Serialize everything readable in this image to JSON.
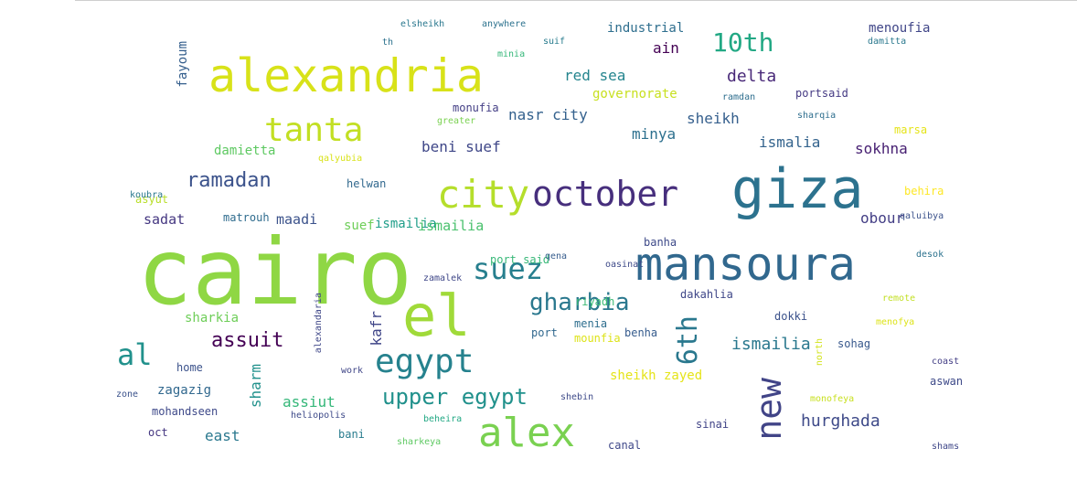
{
  "chart_data": {
    "type": "wordcloud",
    "words": [
      {
        "text": "cairo",
        "color": "#8fd744"
      },
      {
        "text": "giza",
        "color": "#2c728e"
      },
      {
        "text": "mansoura",
        "color": "#31688e"
      },
      {
        "text": "alexandria",
        "color": "#d8e219"
      },
      {
        "text": "el",
        "color": "#a0da39"
      },
      {
        "text": "city",
        "color": "#b5de2b"
      },
      {
        "text": "october",
        "color": "#472f7d"
      },
      {
        "text": "alex",
        "color": "#7ad151"
      },
      {
        "text": "tanta",
        "color": "#c2df23"
      },
      {
        "text": "egypt",
        "color": "#26828e"
      },
      {
        "text": "suez",
        "color": "#277f8e"
      },
      {
        "text": "al",
        "color": "#21918c"
      },
      {
        "text": "gharbia",
        "color": "#2a788e"
      },
      {
        "text": "upper egypt",
        "color": "#21918c"
      },
      {
        "text": "new",
        "color": "#414487"
      },
      {
        "text": "assuit",
        "color": "#440154"
      },
      {
        "text": "ramadan",
        "color": "#3b528b"
      },
      {
        "text": "10th",
        "color": "#22a884"
      },
      {
        "text": "6th",
        "color": "#2a788e"
      },
      {
        "text": "hurghada",
        "color": "#3e4a89"
      },
      {
        "text": "delta",
        "color": "#482878"
      },
      {
        "text": "ismailia",
        "color": "#2a788e"
      },
      {
        "text": "ismailia",
        "color": "#1f9e89"
      },
      {
        "text": "nasr city",
        "color": "#34618d"
      },
      {
        "text": "red sea",
        "color": "#25858e"
      },
      {
        "text": "sheikh",
        "color": "#355f8d"
      },
      {
        "text": "beni suef",
        "color": "#3f4788"
      },
      {
        "text": "minya",
        "color": "#2d708e"
      },
      {
        "text": "sokhna",
        "color": "#482173"
      },
      {
        "text": "ismalia",
        "color": "#33638d"
      },
      {
        "text": "suef",
        "color": "#6ece58"
      },
      {
        "text": "ismailia",
        "color": "#4ac16d"
      },
      {
        "text": "sadat",
        "color": "#453781"
      },
      {
        "text": "maadi",
        "color": "#3b528b"
      },
      {
        "text": "obour",
        "color": "#433e85"
      },
      {
        "text": "governorate",
        "color": "#c8e020"
      },
      {
        "text": "industrial",
        "color": "#2e6e8e"
      },
      {
        "text": "ain",
        "color": "#440154"
      },
      {
        "text": "menoufia",
        "color": "#404688"
      },
      {
        "text": "damietta",
        "color": "#5ec962"
      },
      {
        "text": "fayoum",
        "color": "#355f8d"
      },
      {
        "text": "sheikh zayed",
        "color": "#e5e419"
      },
      {
        "text": "assiut",
        "color": "#35b779"
      },
      {
        "text": "sharm",
        "color": "#21918c"
      },
      {
        "text": "zagazig",
        "color": "#31688e"
      },
      {
        "text": "sharkia",
        "color": "#6ece58"
      },
      {
        "text": "kafr",
        "color": "#404688"
      },
      {
        "text": "east",
        "color": "#2a788e"
      },
      {
        "text": "home",
        "color": "#3b528b"
      },
      {
        "text": "mohandseen",
        "color": "#3e4989"
      },
      {
        "text": "oct",
        "color": "#453781"
      },
      {
        "text": "canal",
        "color": "#3f4889"
      },
      {
        "text": "sinai",
        "color": "#414487"
      },
      {
        "text": "sohag",
        "color": "#38588c"
      },
      {
        "text": "dokki",
        "color": "#3b528b"
      },
      {
        "text": "dakahlia",
        "color": "#3f4788"
      },
      {
        "text": "port said",
        "color": "#37b878"
      },
      {
        "text": "portsaid",
        "color": "#443983"
      },
      {
        "text": "monufia",
        "color": "#433e85"
      },
      {
        "text": "helwan",
        "color": "#31688e"
      },
      {
        "text": "matrouh",
        "color": "#2f6c8e"
      },
      {
        "text": "asyut",
        "color": "#b8de29"
      },
      {
        "text": "koubra",
        "color": "#2a788e"
      },
      {
        "text": "riyadh",
        "color": "#3cbb75"
      },
      {
        "text": "banha",
        "color": "#3e4a89"
      },
      {
        "text": "benha",
        "color": "#365c8d"
      },
      {
        "text": "port",
        "color": "#31688e"
      },
      {
        "text": "menia",
        "color": "#2e6e8e"
      },
      {
        "text": "mounfia",
        "color": "#dde318"
      },
      {
        "text": "bani",
        "color": "#287c8e"
      },
      {
        "text": "sharkeya",
        "color": "#5ec962"
      },
      {
        "text": "beheira",
        "color": "#22a884"
      },
      {
        "text": "heliopolis",
        "color": "#3e4a89"
      },
      {
        "text": "alexandaria",
        "color": "#3f4788"
      },
      {
        "text": "anywhere",
        "color": "#2c728e"
      },
      {
        "text": "elsheikh",
        "color": "#2a788e"
      },
      {
        "text": "marsa",
        "color": "#e5e419"
      },
      {
        "text": "behira",
        "color": "#fde725"
      },
      {
        "text": "qaluibya",
        "color": "#3b528b"
      },
      {
        "text": "sharqia",
        "color": "#2e6e8e"
      },
      {
        "text": "damitta",
        "color": "#2a788e"
      },
      {
        "text": "aswan",
        "color": "#3e4a89"
      },
      {
        "text": "coast",
        "color": "#433e85"
      },
      {
        "text": "shams",
        "color": "#3f4788"
      },
      {
        "text": "north",
        "color": "#d2e21b"
      },
      {
        "text": "remote",
        "color": "#c2df23"
      },
      {
        "text": "menofya",
        "color": "#dde318"
      },
      {
        "text": "monofeya",
        "color": "#c8e020"
      },
      {
        "text": "greater",
        "color": "#7ad151"
      },
      {
        "text": "minia",
        "color": "#35b779"
      },
      {
        "text": "qena",
        "color": "#365c8d"
      },
      {
        "text": "oasinat",
        "color": "#3e4a89"
      },
      {
        "text": "work",
        "color": "#404688"
      },
      {
        "text": "zamalek",
        "color": "#3f4788"
      },
      {
        "text": "desok",
        "color": "#2c728e"
      },
      {
        "text": "th",
        "color": "#2c728e"
      },
      {
        "text": "suif",
        "color": "#287c8e"
      },
      {
        "text": "zone",
        "color": "#3b528b"
      },
      {
        "text": "qalyubia",
        "color": "#d8e219"
      },
      {
        "text": "shebin",
        "color": "#3e4a89"
      },
      {
        "text": "ramdan",
        "color": "#2e6e8e"
      }
    ]
  }
}
